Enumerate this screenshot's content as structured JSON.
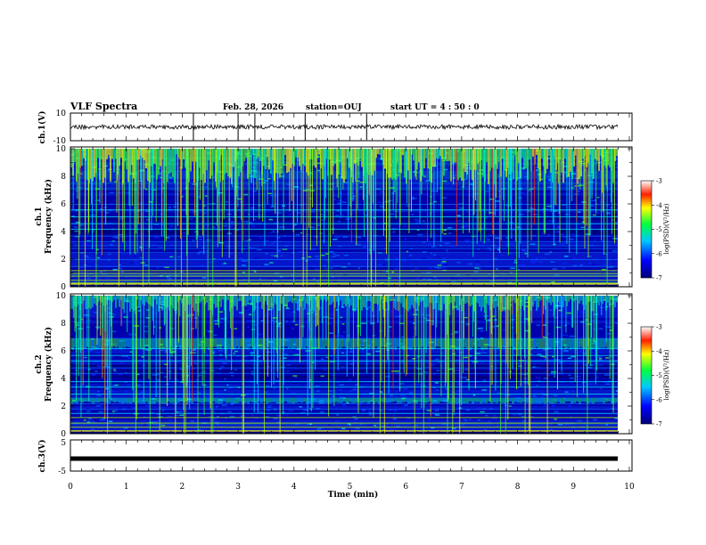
{
  "header": {
    "title": "VLF Spectra",
    "date": "Feb. 28, 2026",
    "station": "station=OUJ",
    "start": "start UT =  4 : 50 : 0"
  },
  "colors": {
    "spectrogram_background": "#00008c",
    "trace": "#000000"
  },
  "chart_data": [
    {
      "type": "line",
      "name": "ch1-waveform",
      "ylabel": "ch.1(V)",
      "yticklabels": [
        "10",
        "-10"
      ],
      "ylim": [
        -10,
        10
      ],
      "baseline": 0,
      "xlim": [
        0,
        10
      ],
      "spike_times_min": [
        2.2,
        3.0,
        3.3,
        4.2,
        5.3
      ]
    },
    {
      "type": "heatmap",
      "name": "ch1-spectrogram",
      "ylabel": "ch.1 Frequency (kHz)",
      "ylabel_top": "ch.1",
      "ylabel_bottom": "Frequency (kHz)",
      "yticks": [
        0,
        2,
        4,
        6,
        8,
        10
      ],
      "ylim": [
        0,
        10
      ],
      "xlim": [
        0,
        9.8
      ],
      "colorbar": {
        "label": "log(PSD)(V²/Hz)",
        "ticks": [
          "-3",
          "-4",
          "-5",
          "-6",
          "-7"
        ],
        "range": [
          -7,
          -3
        ]
      }
    },
    {
      "type": "heatmap",
      "name": "ch2-spectrogram",
      "ylabel": "ch.2 Frequency (kHz)",
      "ylabel_top": "ch.2",
      "ylabel_bottom": "Frequency (kHz)",
      "yticks": [
        0,
        2,
        4,
        6,
        8,
        10
      ],
      "ylim": [
        0,
        10
      ],
      "xlim": [
        0,
        9.8
      ],
      "colorbar": {
        "label": "log(PSD)(V²/Hz)",
        "ticks": [
          "-3",
          "-4",
          "-5",
          "-6",
          "-7"
        ],
        "range": [
          -7,
          -3
        ]
      }
    },
    {
      "type": "line",
      "name": "ch3-waveform",
      "ylabel": "ch.3(V)",
      "yticklabels": [
        "5",
        "-5"
      ],
      "ylim": [
        -5,
        5
      ],
      "level": -1,
      "xlim": [
        0,
        9.8
      ]
    }
  ],
  "xaxis": {
    "label": "Time (min)",
    "ticks": [
      "0",
      "1",
      "2",
      "3",
      "4",
      "5",
      "6",
      "7",
      "8",
      "9",
      "10"
    ]
  }
}
